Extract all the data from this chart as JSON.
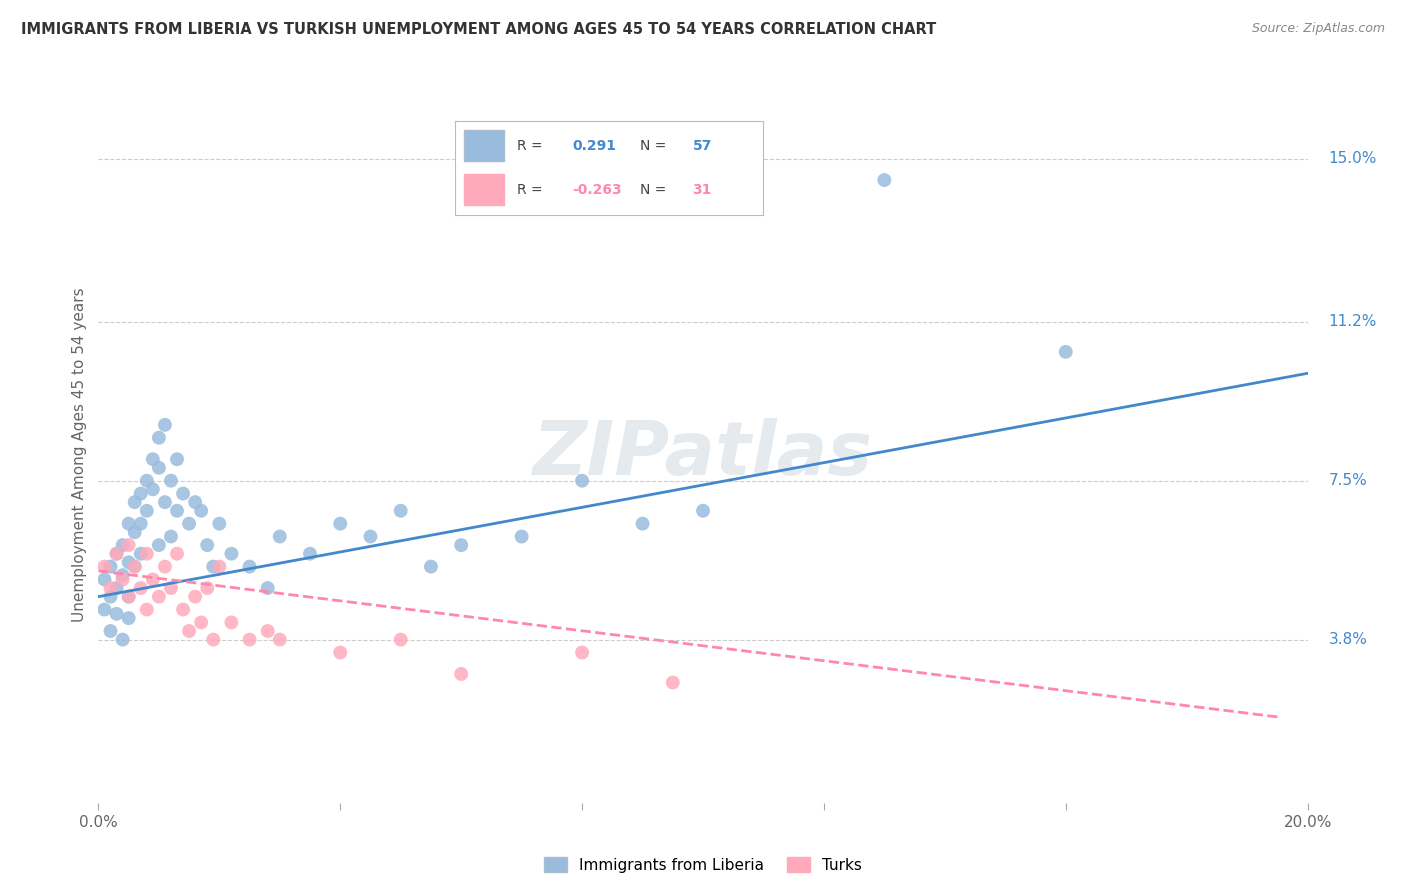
{
  "title": "IMMIGRANTS FROM LIBERIA VS TURKISH UNEMPLOYMENT AMONG AGES 45 TO 54 YEARS CORRELATION CHART",
  "source": "Source: ZipAtlas.com",
  "ylabel": "Unemployment Among Ages 45 to 54 years",
  "xlim": [
    0.0,
    0.2
  ],
  "ylim": [
    0.0,
    0.162
  ],
  "ytick_positions": [
    0.038,
    0.075,
    0.112,
    0.15
  ],
  "ytick_labels": [
    "3.8%",
    "7.5%",
    "11.2%",
    "15.0%"
  ],
  "blue_color": "#99BBDD",
  "pink_color": "#FFAABB",
  "blue_line_color": "#4488CC",
  "pink_line_color": "#FF88AA",
  "watermark": "ZIPatlas",
  "blue_scatter_x": [
    0.001,
    0.001,
    0.002,
    0.002,
    0.002,
    0.003,
    0.003,
    0.003,
    0.004,
    0.004,
    0.004,
    0.005,
    0.005,
    0.005,
    0.005,
    0.006,
    0.006,
    0.006,
    0.007,
    0.007,
    0.007,
    0.008,
    0.008,
    0.009,
    0.009,
    0.01,
    0.01,
    0.01,
    0.011,
    0.011,
    0.012,
    0.012,
    0.013,
    0.013,
    0.014,
    0.015,
    0.016,
    0.017,
    0.018,
    0.019,
    0.02,
    0.022,
    0.025,
    0.028,
    0.03,
    0.035,
    0.04,
    0.045,
    0.05,
    0.055,
    0.06,
    0.07,
    0.08,
    0.09,
    0.1,
    0.13,
    0.16
  ],
  "blue_scatter_y": [
    0.052,
    0.045,
    0.055,
    0.048,
    0.04,
    0.058,
    0.05,
    0.044,
    0.06,
    0.053,
    0.038,
    0.065,
    0.056,
    0.048,
    0.043,
    0.07,
    0.063,
    0.055,
    0.072,
    0.065,
    0.058,
    0.075,
    0.068,
    0.08,
    0.073,
    0.085,
    0.078,
    0.06,
    0.088,
    0.07,
    0.075,
    0.062,
    0.08,
    0.068,
    0.072,
    0.065,
    0.07,
    0.068,
    0.06,
    0.055,
    0.065,
    0.058,
    0.055,
    0.05,
    0.062,
    0.058,
    0.065,
    0.062,
    0.068,
    0.055,
    0.06,
    0.062,
    0.075,
    0.065,
    0.068,
    0.145,
    0.105
  ],
  "pink_scatter_x": [
    0.001,
    0.002,
    0.003,
    0.004,
    0.005,
    0.005,
    0.006,
    0.007,
    0.008,
    0.008,
    0.009,
    0.01,
    0.011,
    0.012,
    0.013,
    0.014,
    0.015,
    0.016,
    0.017,
    0.018,
    0.019,
    0.02,
    0.022,
    0.025,
    0.028,
    0.03,
    0.04,
    0.05,
    0.06,
    0.08,
    0.095
  ],
  "pink_scatter_y": [
    0.055,
    0.05,
    0.058,
    0.052,
    0.06,
    0.048,
    0.055,
    0.05,
    0.058,
    0.045,
    0.052,
    0.048,
    0.055,
    0.05,
    0.058,
    0.045,
    0.04,
    0.048,
    0.042,
    0.05,
    0.038,
    0.055,
    0.042,
    0.038,
    0.04,
    0.038,
    0.035,
    0.038,
    0.03,
    0.035,
    0.028
  ],
  "blue_trend_x": [
    0.0,
    0.2
  ],
  "blue_trend_y": [
    0.048,
    0.1
  ],
  "pink_trend_x": [
    0.0,
    0.195
  ],
  "pink_trend_y": [
    0.054,
    0.02
  ],
  "background_color": "#FFFFFF",
  "grid_color": "#CCCCCC"
}
